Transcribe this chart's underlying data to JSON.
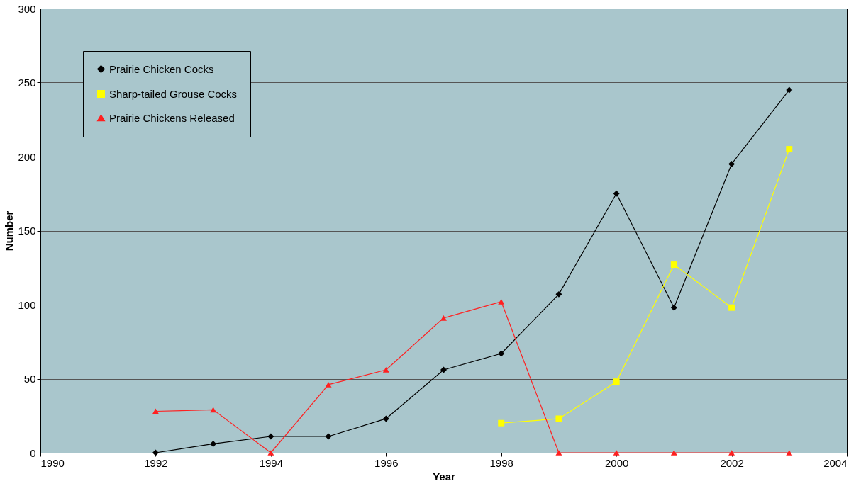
{
  "chart_data": {
    "type": "line",
    "xlabel": "Year",
    "ylabel": "Number",
    "x": [
      1992,
      1993,
      1994,
      1995,
      1996,
      1997,
      1998,
      1999,
      2000,
      2001,
      2002,
      2003
    ],
    "series": [
      {
        "name": "Prairie Chicken Cocks",
        "color": "#000000",
        "marker": "diamond",
        "values": [
          0,
          6,
          11,
          11,
          23,
          56,
          67,
          107,
          175,
          98,
          195,
          245
        ]
      },
      {
        "name": "Sharp-tailed Grouse Cocks",
        "color": "#ffff00",
        "marker": "square",
        "values": [
          null,
          null,
          null,
          null,
          null,
          null,
          20,
          23,
          48,
          127,
          98,
          205
        ]
      },
      {
        "name": "Prairie Chickens Released",
        "color": "#ff2020",
        "marker": "triangle",
        "values": [
          28,
          29,
          0,
          46,
          56,
          91,
          102,
          0,
          0,
          0,
          0,
          0
        ]
      }
    ],
    "xlim": [
      1990,
      2004
    ],
    "xticks": [
      1990,
      1992,
      1994,
      1996,
      1998,
      2000,
      2002,
      2004
    ],
    "ylim": [
      0,
      300
    ],
    "yticks": [
      0,
      50,
      100,
      150,
      200,
      250,
      300
    ],
    "grid": "y",
    "legend": "top left",
    "line_style": "solid"
  }
}
